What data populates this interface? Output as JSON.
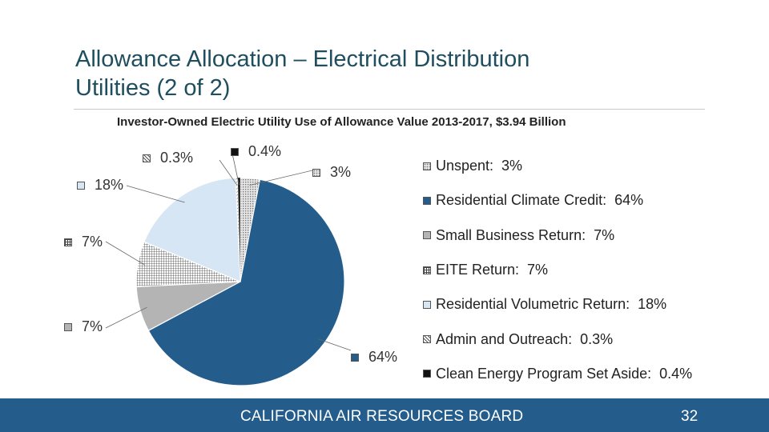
{
  "slide": {
    "title_line1": "Allowance Allocation – Electrical Distribution",
    "title_line2": "Utilities (2 of 2)",
    "footer_org": "CALIFORNIA AIR RESOURCES BOARD",
    "page_number": "32"
  },
  "chart_data": {
    "type": "pie",
    "title": "Investor-Owned Electric Utility Use of Allowance Value 2013-2017, $3.94 Billion",
    "legend_position": "right",
    "slices": [
      {
        "label": "Unspent:",
        "value": 3,
        "value_label": "3%",
        "legend_value": "3%",
        "color": "#d9d9d9",
        "pattern": "dots"
      },
      {
        "label": "Residential Climate Credit:",
        "value": 64,
        "value_label": "64%",
        "legend_value": "64%",
        "color": "#245d8c",
        "pattern": "solid"
      },
      {
        "label": "Small Business Return:",
        "value": 7,
        "value_label": "7%",
        "legend_value": "7%",
        "color": "#b4b4b4",
        "pattern": "solid"
      },
      {
        "label": "EITE Return:",
        "value": 7,
        "value_label": "7%",
        "legend_value": "7%",
        "color": "#ffffff",
        "pattern": "grid"
      },
      {
        "label": "Residential Volumetric Return:",
        "value": 18,
        "value_label": "18%",
        "legend_value": "18%",
        "color": "#d6e6f5",
        "pattern": "solid"
      },
      {
        "label": "Admin and Outreach:",
        "value": 0.3,
        "value_label": "0.3%",
        "legend_value": "0.3%",
        "color": "#ffffff",
        "pattern": "hatch"
      },
      {
        "label": "Clean Energy Program Set Aside:",
        "value": 0.4,
        "value_label": "0.4%",
        "legend_value": "0.4%",
        "color": "#111111",
        "pattern": "solid"
      }
    ]
  }
}
